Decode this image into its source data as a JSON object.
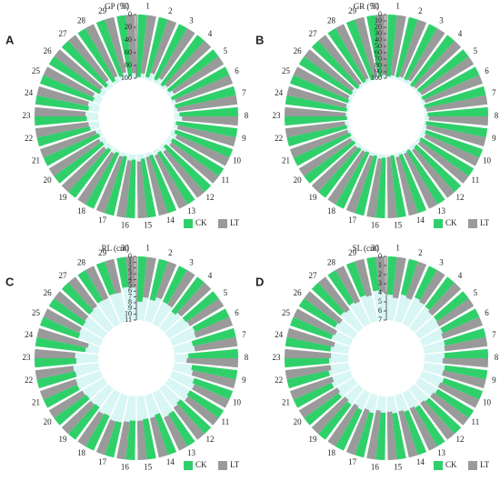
{
  "chart_data": [
    {
      "type": "radial-bar",
      "panel_label": "A",
      "ylabel": "GP (%)",
      "categories": [
        "1",
        "2",
        "3",
        "4",
        "5",
        "6",
        "7",
        "8",
        "9",
        "10",
        "11",
        "12",
        "13",
        "14",
        "15",
        "16",
        "17",
        "18",
        "19",
        "20",
        "21",
        "22",
        "23",
        "24",
        "25",
        "26",
        "27",
        "28",
        "29",
        "30"
      ],
      "series": [
        {
          "name": "CK",
          "color": "#2fd06a",
          "values": [
            98,
            96,
            95,
            97,
            96,
            98,
            97,
            92,
            97,
            95,
            93,
            96,
            94,
            95,
            93,
            92,
            95,
            96,
            94,
            93,
            95,
            85,
            82,
            84,
            88,
            92,
            94,
            95,
            93,
            96
          ]
        },
        {
          "name": "LT",
          "color": "#9a9a9a",
          "values": [
            92,
            88,
            90,
            93,
            91,
            94,
            95,
            88,
            93,
            90,
            91,
            90,
            92,
            94,
            89,
            90,
            93,
            92,
            90,
            91,
            92,
            84,
            80,
            82,
            85,
            90,
            88,
            90,
            89,
            92
          ]
        }
      ],
      "ylim": [
        0,
        100
      ],
      "yticks": [
        0,
        20,
        40,
        60,
        80,
        100
      ]
    },
    {
      "type": "radial-bar",
      "panel_label": "B",
      "ylabel": "GR (%)",
      "categories": [
        "1",
        "2",
        "3",
        "4",
        "5",
        "6",
        "7",
        "8",
        "9",
        "10",
        "11",
        "12",
        "13",
        "14",
        "15",
        "16",
        "17",
        "18",
        "19",
        "20",
        "21",
        "22",
        "23",
        "24",
        "25",
        "26",
        "27",
        "28",
        "29",
        "30"
      ],
      "series": [
        {
          "name": "CK",
          "color": "#2fd06a",
          "values": [
            97,
            96,
            95,
            98,
            96,
            97,
            98,
            95,
            97,
            94,
            96,
            95,
            97,
            96,
            98,
            95,
            96,
            97,
            95,
            96,
            97,
            96,
            98,
            97,
            96,
            95,
            97,
            96,
            98,
            97
          ]
        },
        {
          "name": "LT",
          "color": "#9a9a9a",
          "values": [
            95,
            94,
            93,
            96,
            95,
            95,
            96,
            93,
            95,
            92,
            94,
            93,
            95,
            94,
            96,
            93,
            94,
            95,
            93,
            94,
            95,
            94,
            96,
            95,
            94,
            93,
            95,
            94,
            96,
            95
          ]
        }
      ],
      "ylim": [
        0,
        100
      ],
      "yticks": [
        0,
        10,
        20,
        30,
        40,
        50,
        60,
        70,
        80,
        90,
        100
      ]
    },
    {
      "type": "radial-bar",
      "panel_label": "C",
      "ylabel": "RL (cm)",
      "categories": [
        "1",
        "2",
        "3",
        "4",
        "5",
        "6",
        "7",
        "8",
        "9",
        "10",
        "11",
        "12",
        "13",
        "14",
        "15",
        "16",
        "17",
        "18",
        "19",
        "20",
        "21",
        "22",
        "23",
        "24",
        "25",
        "26",
        "27",
        "28",
        "29",
        "30"
      ],
      "series": [
        {
          "name": "CK",
          "color": "#2fd06a",
          "values": [
            7.8,
            7.2,
            6.8,
            7.5,
            7.0,
            6.5,
            7.6,
            8.6,
            7.9,
            7.0,
            6.8,
            7.2,
            6.5,
            7.3,
            7.0,
            6.8,
            6.2,
            6.6,
            7.0,
            6.9,
            6.4,
            6.8,
            7.2,
            8.7,
            7.0,
            6.8,
            6.5,
            6.0,
            5.8,
            5.2
          ]
        },
        {
          "name": "LT",
          "color": "#9a9a9a",
          "values": [
            7.0,
            6.5,
            6.9,
            7.0,
            6.8,
            6.7,
            7.4,
            8.9,
            7.6,
            6.6,
            6.5,
            6.9,
            6.3,
            7.0,
            6.8,
            6.5,
            6.1,
            6.4,
            6.8,
            6.7,
            6.5,
            6.6,
            7.0,
            9.0,
            6.8,
            6.6,
            6.3,
            6.1,
            5.9,
            5.4
          ]
        }
      ],
      "ylim": [
        0,
        11
      ],
      "yticks": [
        0,
        1,
        2,
        3,
        4,
        5,
        6,
        7,
        8,
        9,
        10,
        11
      ]
    },
    {
      "type": "radial-bar",
      "panel_label": "D",
      "ylabel": "SL (cm)",
      "categories": [
        "1",
        "2",
        "3",
        "4",
        "5",
        "6",
        "7",
        "8",
        "9",
        "10",
        "11",
        "12",
        "13",
        "14",
        "15",
        "16",
        "17",
        "18",
        "19",
        "20",
        "21",
        "22",
        "23",
        "24",
        "25",
        "26",
        "27",
        "28",
        "29",
        "30"
      ],
      "series": [
        {
          "name": "CK",
          "color": "#2fd06a",
          "values": [
            4.2,
            4.0,
            3.8,
            4.1,
            4.3,
            4.4,
            4.6,
            4.8,
            4.7,
            4.5,
            4.6,
            4.8,
            4.9,
            5.0,
            5.1,
            5.2,
            5.0,
            4.9,
            4.8,
            4.7,
            4.6,
            4.7,
            4.9,
            5.0,
            4.8,
            4.6,
            4.3,
            4.1,
            3.9,
            3.7
          ]
        },
        {
          "name": "LT",
          "color": "#9a9a9a",
          "values": [
            4.5,
            4.2,
            4.0,
            4.3,
            4.4,
            4.6,
            4.7,
            5.0,
            4.8,
            4.7,
            4.8,
            5.0,
            5.1,
            5.2,
            5.3,
            5.4,
            5.2,
            5.1,
            5.0,
            4.9,
            4.9,
            5.0,
            5.1,
            5.3,
            5.0,
            4.8,
            4.5,
            4.3,
            4.1,
            3.9
          ]
        }
      ],
      "ylim": [
        0,
        7
      ],
      "yticks": [
        0,
        1,
        2,
        3,
        4,
        5,
        6,
        7
      ]
    }
  ]
}
